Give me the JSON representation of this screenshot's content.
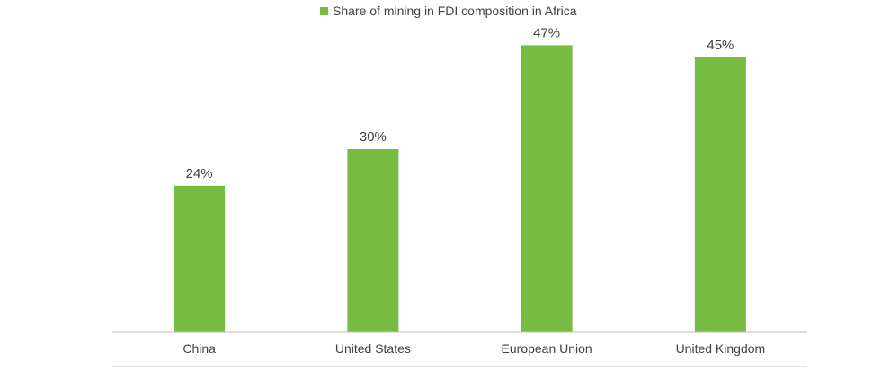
{
  "chart_data": {
    "type": "bar",
    "categories": [
      "China",
      "United States",
      "European Union",
      "United Kingdom"
    ],
    "series": [
      {
        "name": "Share of mining in FDI composition in Africa",
        "values": [
          24,
          30,
          47,
          45
        ],
        "color": "#76bc43"
      }
    ],
    "data_labels": [
      "24%",
      "30%",
      "47%",
      "45%"
    ],
    "ylim": [
      0,
      50
    ],
    "grid": false,
    "legend": "top-center",
    "title": "",
    "xlabel": "",
    "ylabel": ""
  }
}
